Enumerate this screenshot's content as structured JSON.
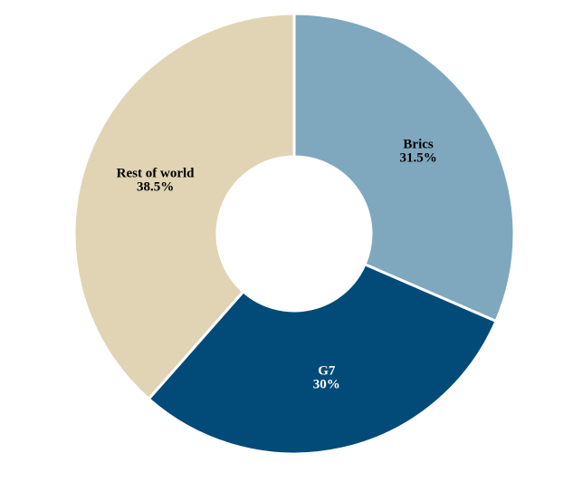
{
  "chart_data": {
    "type": "pie",
    "categories": [
      "Brics",
      "G7",
      "Rest of world"
    ],
    "values": [
      31.5,
      30,
      38.5
    ],
    "value_labels": [
      "31.5%",
      "30%",
      "38.5%"
    ],
    "colors": [
      "#7fa8bf",
      "#024b78",
      "#e0d4b4"
    ]
  }
}
